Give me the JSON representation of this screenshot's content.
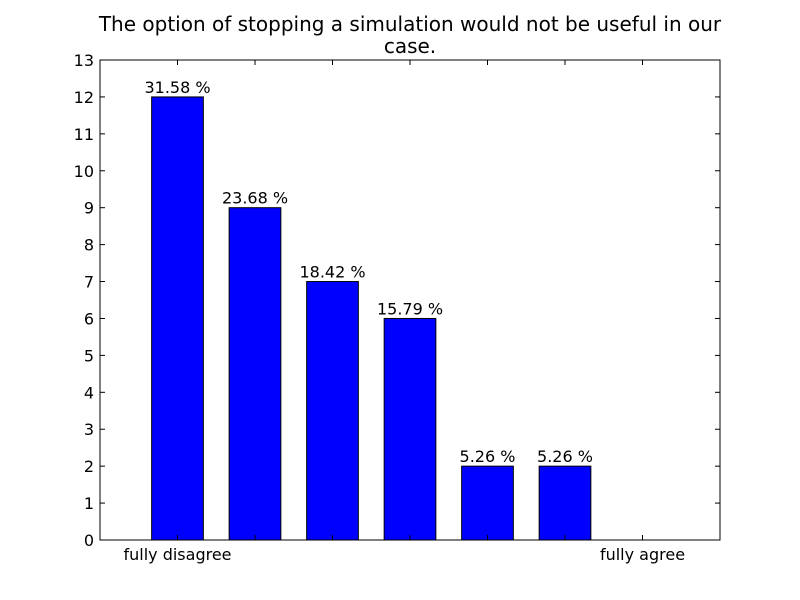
{
  "chart_data": {
    "type": "bar",
    "title_lines": [
      "The option of stopping a simulation would not be useful in our",
      "case."
    ],
    "categories": [
      "1",
      "2",
      "3",
      "4",
      "5",
      "6",
      "7"
    ],
    "values": [
      12,
      9,
      7,
      6,
      2,
      2,
      0
    ],
    "bar_labels": [
      "31.58 %",
      "23.68 %",
      "18.42 %",
      "15.79 %",
      "5.26 %",
      "5.26 %",
      ""
    ],
    "x_tick_labels": [
      "fully disagree",
      "",
      "",
      "",
      "",
      "",
      "fully agree"
    ],
    "xlabel": "",
    "ylabel": "",
    "ylim": [
      0,
      13
    ],
    "yticks": [
      0,
      1,
      2,
      3,
      4,
      5,
      6,
      7,
      8,
      9,
      10,
      11,
      12,
      13
    ],
    "bar_color": "#0000ff",
    "grid": false,
    "legend": "none"
  }
}
